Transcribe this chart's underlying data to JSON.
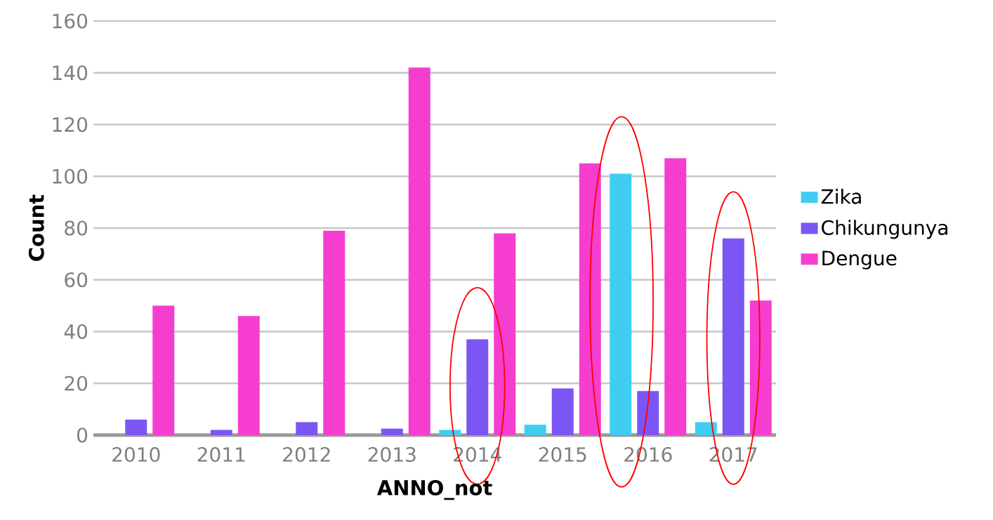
{
  "chart_data": {
    "type": "bar",
    "xlabel": "ANNO_not",
    "ylabel": "Count",
    "categories": [
      "2010",
      "2011",
      "2012",
      "2013",
      "2014",
      "2015",
      "2016",
      "2017"
    ],
    "series": [
      {
        "name": "Zika",
        "color": "#40cdf2",
        "values": [
          null,
          null,
          null,
          null,
          2,
          4,
          101,
          5
        ]
      },
      {
        "name": "Chikungunya",
        "color": "#7b56f4",
        "values": [
          6,
          2,
          5,
          2.5,
          37,
          18,
          17,
          76
        ]
      },
      {
        "name": "Dengue",
        "color": "#f53ecf",
        "values": [
          50,
          46,
          79,
          142,
          78,
          105,
          107,
          52
        ]
      }
    ],
    "ylim": [
      0,
      160
    ],
    "yticks": [
      0,
      20,
      40,
      60,
      80,
      100,
      120,
      140,
      160
    ],
    "grid": "y",
    "legend": "right"
  }
}
